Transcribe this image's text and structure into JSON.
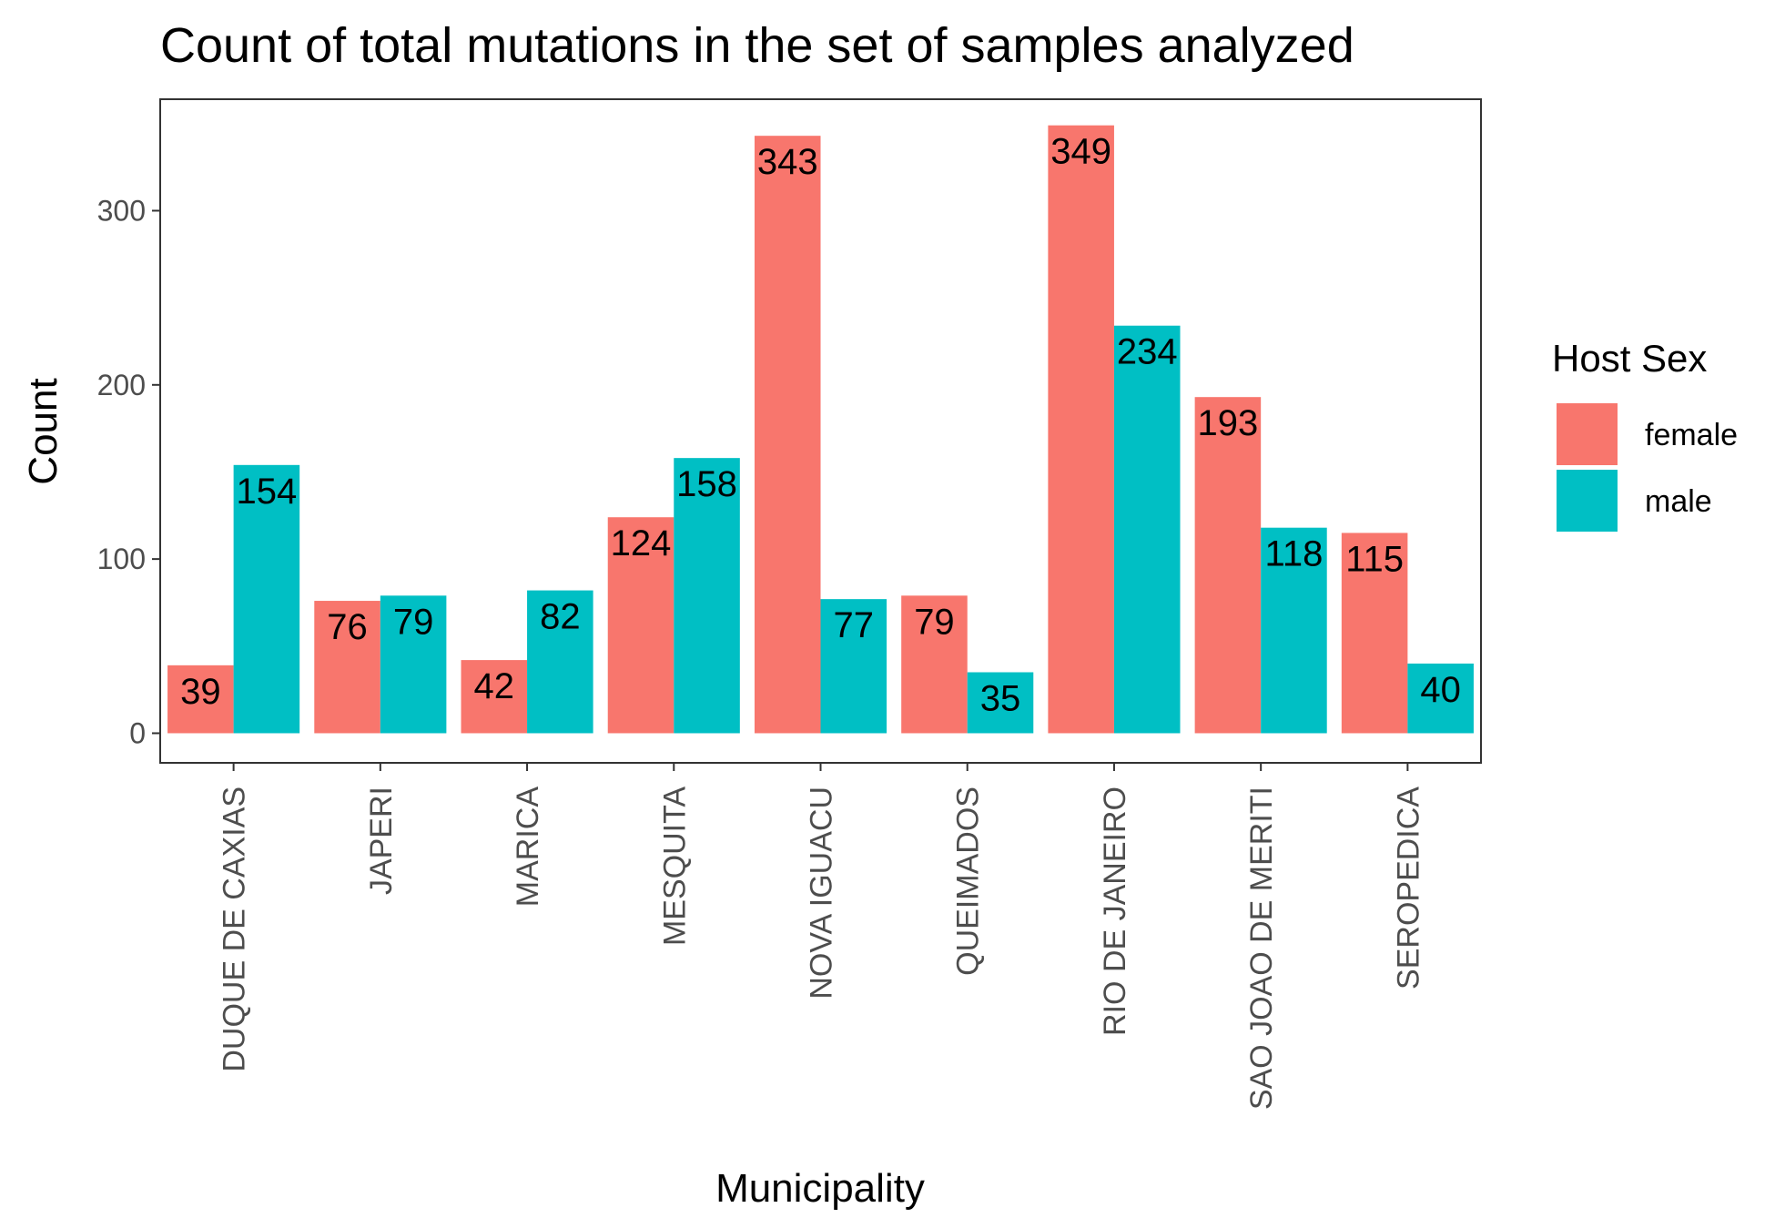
{
  "chart_data": {
    "type": "bar",
    "title": "Count of total mutations in the set of samples analyzed",
    "xlabel": "Municipality",
    "ylabel": "Count",
    "categories": [
      "DUQUE DE CAXIAS",
      "JAPERI",
      "MARICA",
      "MESQUITA",
      "NOVA IGUACU",
      "QUEIMADOS",
      "RIO DE JANEIRO",
      "SAO JOAO DE MERITI",
      "SEROPEDICA"
    ],
    "series": [
      {
        "name": "female",
        "color": "#F8766D",
        "values": [
          39,
          76,
          42,
          124,
          343,
          79,
          349,
          193,
          115
        ]
      },
      {
        "name": "male",
        "color": "#00BFC4",
        "values": [
          154,
          79,
          82,
          158,
          77,
          35,
          234,
          118,
          40
        ]
      }
    ],
    "ylim": [
      -17,
      364
    ],
    "yticks": [
      0,
      100,
      200,
      300
    ],
    "grid": false,
    "legend": {
      "title": "Host Sex",
      "position": "right"
    }
  }
}
